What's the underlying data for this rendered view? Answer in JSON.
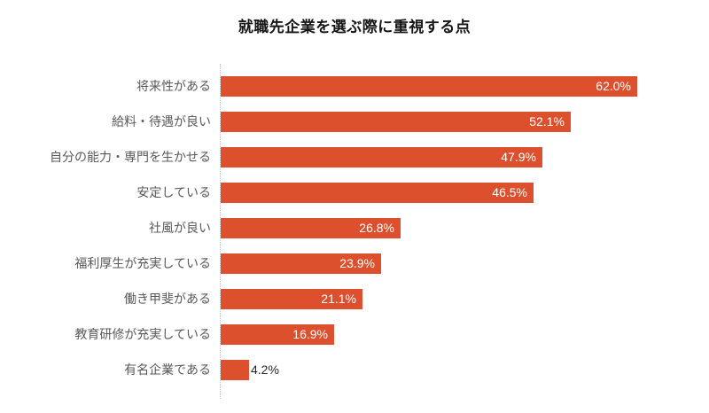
{
  "chart_data": {
    "type": "bar",
    "orientation": "horizontal",
    "title": "就職先企業を選ぶ際に重視する点",
    "categories": [
      "将来性がある",
      "給料・待遇が良い",
      "自分の能力・専門を生かせる",
      "安定している",
      "社風が良い",
      "福利厚生が充実している",
      "働き甲斐がある",
      "教育研修が充実している",
      "有名企業である"
    ],
    "values": [
      62.0,
      52.1,
      47.9,
      46.5,
      26.8,
      23.9,
      21.1,
      16.9,
      4.2
    ],
    "value_labels": [
      "62.0%",
      "52.1%",
      "47.9%",
      "46.5%",
      "26.8%",
      "23.9%",
      "21.1%",
      "16.9%",
      "4.2%"
    ],
    "xlabel": "",
    "ylabel": "",
    "xlim": [
      0,
      70
    ],
    "grid": false,
    "legend": false,
    "data_labels": "inside-end, outside-end when bar too short"
  },
  "colors": {
    "bar": "#DC502E",
    "category_label": "#595959",
    "value_label_inside": "#FFFFFF",
    "value_label_outside": "#262626",
    "axis_line": "#BFBFBF",
    "title": "#161616",
    "background": "#FFFFFF"
  }
}
